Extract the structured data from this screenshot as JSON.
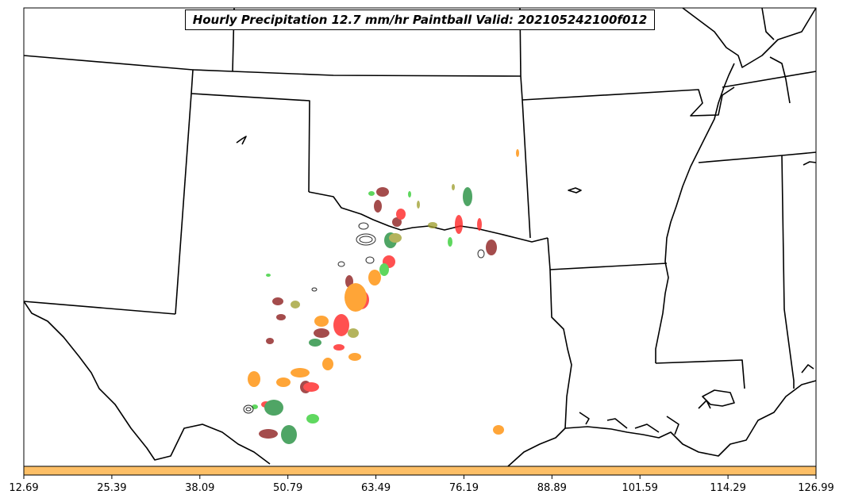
{
  "title": "Hourly Precipitation 12.7 mm/hr Paintball Valid: 202105242100f012",
  "colorbar": {
    "color": "#fdbf66",
    "ticks": [
      "12.69",
      "25.39",
      "38.09",
      "50.79",
      "63.49",
      "76.19",
      "88.89",
      "101.59",
      "114.29",
      "126.99"
    ]
  },
  "colors": {
    "background": "#ffffff",
    "boundaries": "#000000",
    "members": [
      "#8b1a1a",
      "#ff2020",
      "#ff8c00",
      "#1e8c3a",
      "#32cd32",
      "#a0a030",
      "#2a2a2a",
      "#ff7f27"
    ]
  }
}
